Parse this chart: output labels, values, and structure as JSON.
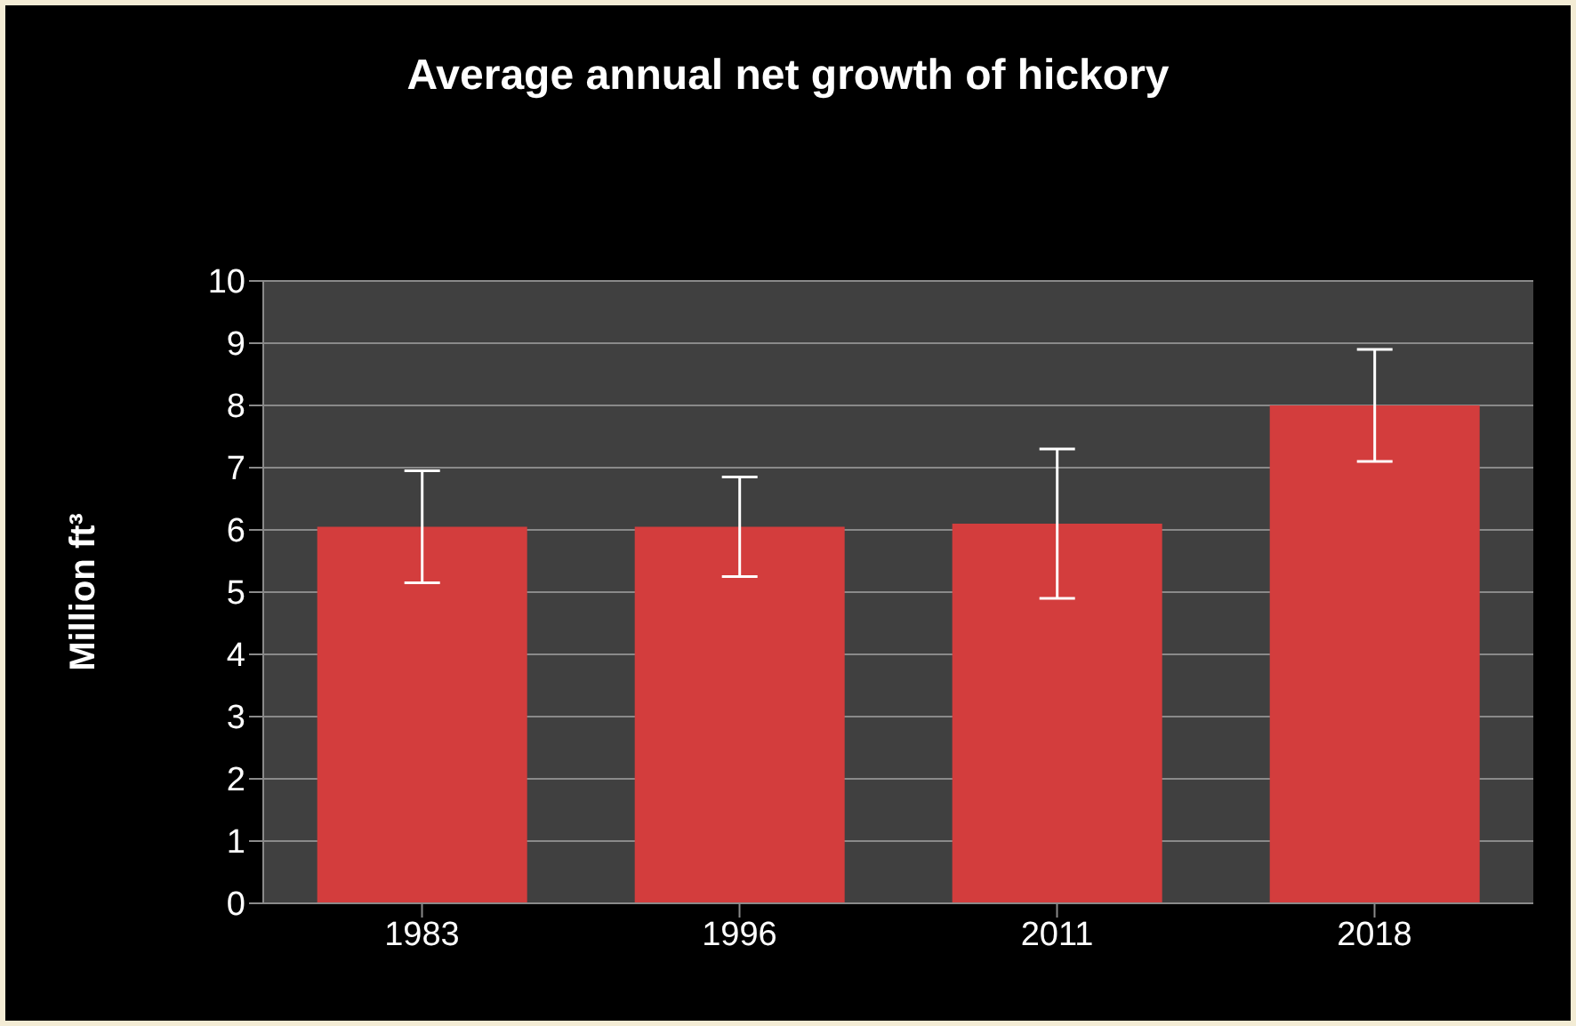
{
  "chart_data": {
    "type": "bar",
    "title": "Average annual net growth of hickory",
    "ylabel": "Million ft³",
    "categories": [
      "1983",
      "1996",
      "2011",
      "2018"
    ],
    "values": [
      6.05,
      6.05,
      6.1,
      8.0
    ],
    "errors": [
      0.9,
      0.8,
      1.2,
      0.9
    ],
    "color": "#d33d3d",
    "ylim": [
      0,
      10
    ],
    "yticks": [
      0,
      1,
      2,
      3,
      4,
      5,
      6,
      7,
      8,
      9,
      10
    ],
    "grid": "y",
    "legend": false
  }
}
